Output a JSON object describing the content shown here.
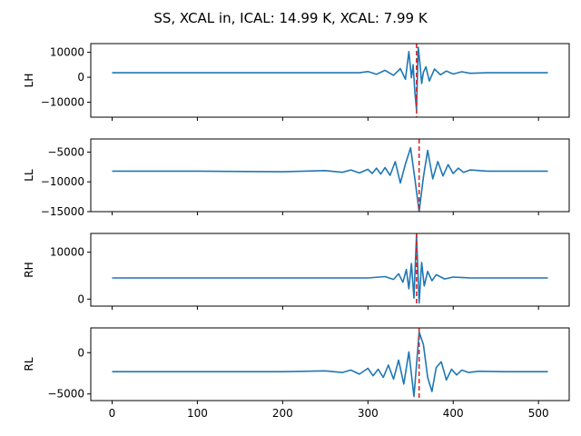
{
  "title": "SS, XCAL in, ICAL: 14.99 K, XCAL: 7.99 K",
  "colors": {
    "line": "#1f77b4",
    "marker": "#d62728",
    "axis": "#000000"
  },
  "chart_data": [
    {
      "type": "line",
      "ylabel": "LH",
      "xlim": [
        -25,
        536
      ],
      "ylim": [
        -16000,
        13500
      ],
      "yticks": [
        10000,
        0,
        -10000
      ],
      "ytick_labels": [
        "10000",
        "0",
        "−10000"
      ],
      "baseline": 1800,
      "marker_x": 357,
      "series": [
        {
          "x": [
            0,
            100,
            200,
            290,
            300,
            310,
            320,
            330,
            338,
            344,
            348,
            351,
            353,
            355,
            357,
            359,
            361,
            363,
            365,
            368,
            372,
            378,
            385,
            392,
            400,
            410,
            420,
            440,
            480,
            511
          ],
          "y": [
            1800,
            1800,
            1800,
            1800,
            2300,
            1200,
            2800,
            800,
            3500,
            -800,
            10300,
            -200,
            5000,
            -6000,
            -13000,
            12000,
            5500,
            -2500,
            2000,
            4200,
            -1500,
            3300,
            1000,
            2500,
            1300,
            2200,
            1600,
            1800,
            1800,
            1800
          ]
        }
      ]
    },
    {
      "type": "line",
      "ylabel": "LL",
      "xlim": [
        -25,
        536
      ],
      "ylim": [
        -15000,
        -2800
      ],
      "yticks": [
        -5000,
        -10000,
        -15000
      ],
      "ytick_labels": [
        "−5000",
        "−10000",
        "−15000"
      ],
      "baseline": -8200,
      "marker_x": 360,
      "series": [
        {
          "x": [
            0,
            100,
            200,
            250,
            270,
            280,
            290,
            300,
            305,
            310,
            315,
            320,
            326,
            332,
            338,
            344,
            350,
            355,
            360,
            365,
            370,
            376,
            382,
            388,
            394,
            400,
            406,
            412,
            420,
            440,
            470,
            511
          ],
          "y": [
            -8200,
            -8200,
            -8300,
            -8100,
            -8400,
            -8000,
            -8500,
            -7900,
            -8600,
            -7700,
            -8700,
            -7600,
            -8900,
            -6600,
            -10200,
            -7000,
            -4300,
            -9500,
            -15000,
            -9200,
            -4700,
            -9500,
            -6600,
            -9000,
            -7100,
            -8600,
            -7700,
            -8400,
            -8000,
            -8200,
            -8200,
            -8200
          ]
        }
      ]
    },
    {
      "type": "line",
      "ylabel": "RH",
      "xlim": [
        -25,
        536
      ],
      "ylim": [
        -1500,
        14000
      ],
      "yticks": [
        10000,
        0
      ],
      "ytick_labels": [
        "10000",
        "0"
      ],
      "baseline": 4500,
      "marker_x": 357,
      "series": [
        {
          "x": [
            0,
            100,
            200,
            300,
            320,
            330,
            336,
            341,
            345,
            348,
            351,
            354,
            357,
            360,
            363,
            366,
            370,
            375,
            380,
            390,
            400,
            420,
            450,
            511
          ],
          "y": [
            4500,
            4500,
            4500,
            4500,
            4800,
            4200,
            5400,
            3600,
            6300,
            2200,
            7600,
            200,
            13800,
            -800,
            7800,
            2800,
            5900,
            3900,
            5200,
            4300,
            4700,
            4500,
            4500,
            4500
          ]
        }
      ]
    },
    {
      "type": "line",
      "ylabel": "RL",
      "xlim": [
        -25,
        536
      ],
      "ylim": [
        -5800,
        3000
      ],
      "yticks": [
        0,
        -5000
      ],
      "ytick_labels": [
        "0",
        "−5000"
      ],
      "baseline": -2300,
      "marker_x": 360,
      "series": [
        {
          "x": [
            0,
            100,
            200,
            250,
            270,
            280,
            290,
            300,
            306,
            312,
            318,
            324,
            330,
            336,
            342,
            348,
            354,
            360,
            365,
            370,
            375,
            380,
            386,
            392,
            398,
            404,
            410,
            418,
            430,
            460,
            511
          ],
          "y": [
            -2300,
            -2300,
            -2300,
            -2200,
            -2400,
            -2100,
            -2600,
            -1900,
            -2800,
            -2000,
            -3000,
            -1500,
            -3200,
            -900,
            -3800,
            100,
            -5300,
            2500,
            1000,
            -3000,
            -4700,
            -1800,
            -1100,
            -3300,
            -2000,
            -2700,
            -2100,
            -2400,
            -2250,
            -2300,
            -2300
          ]
        }
      ]
    }
  ],
  "xaxis": {
    "ticks": [
      0,
      100,
      200,
      300,
      400,
      500
    ],
    "tick_labels": [
      "0",
      "100",
      "200",
      "300",
      "400",
      "500"
    ]
  }
}
